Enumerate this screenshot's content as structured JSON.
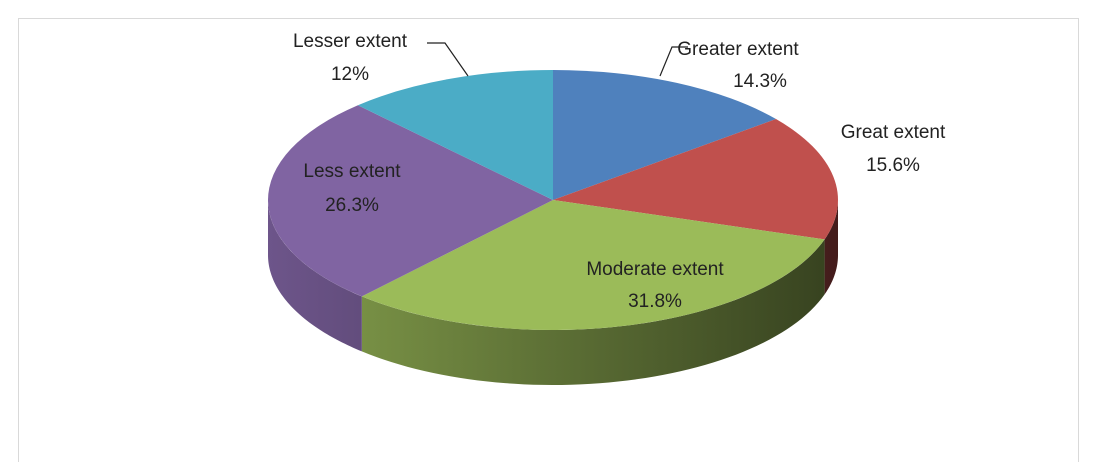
{
  "chart_data": {
    "type": "pie",
    "categories": [
      "Greater extent",
      "Great extent",
      "Moderate extent",
      "Less extent",
      "Lesser extent"
    ],
    "values": [
      14.3,
      15.6,
      31.8,
      26.3,
      12
    ],
    "value_labels": [
      "14.3%",
      "15.6%",
      "31.8%",
      "26.3%",
      "12%"
    ],
    "colors": [
      "#4f81bd",
      "#c0504d",
      "#9bbb59",
      "#8064a2",
      "#4bacc6"
    ]
  }
}
